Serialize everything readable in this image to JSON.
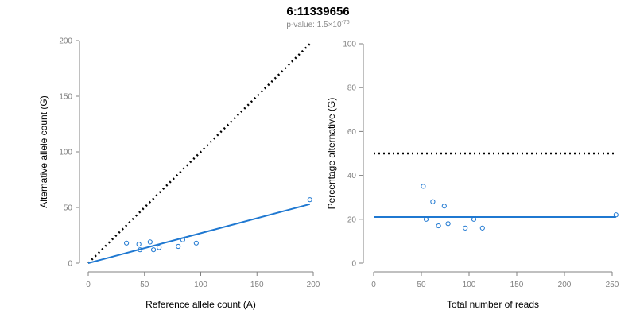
{
  "figure": {
    "title": "6:11339656",
    "subtitle_prefix": "p-value: 1.5×10",
    "subtitle_exponent": "-76"
  },
  "colors": {
    "series": "#1f78d1",
    "reference": "#000000",
    "axis": "#808080"
  },
  "chart_data": [
    {
      "type": "scatter",
      "xlabel": "Reference allele count (A)",
      "ylabel": "Alternative allele count (G)",
      "xlim": [
        0,
        200
      ],
      "ylim": [
        0,
        200
      ],
      "xticks": [
        0,
        50,
        100,
        150,
        200
      ],
      "yticks": [
        0,
        50,
        100,
        150,
        200
      ],
      "points": [
        {
          "x": 34,
          "y": 18
        },
        {
          "x": 45,
          "y": 17
        },
        {
          "x": 46,
          "y": 12
        },
        {
          "x": 55,
          "y": 19
        },
        {
          "x": 58,
          "y": 12
        },
        {
          "x": 63,
          "y": 14
        },
        {
          "x": 80,
          "y": 15
        },
        {
          "x": 84,
          "y": 21
        },
        {
          "x": 96,
          "y": 18
        },
        {
          "x": 197,
          "y": 57
        }
      ],
      "fit_line": {
        "x": [
          0,
          197
        ],
        "y": [
          0,
          53
        ]
      },
      "reference_line": {
        "x": [
          0,
          197
        ],
        "y": [
          0,
          197
        ],
        "style": "dotted"
      }
    },
    {
      "type": "scatter",
      "xlabel": "Total number of reads",
      "ylabel": "Percentage alternative (G)",
      "xlim": [
        0,
        250
      ],
      "ylim": [
        0,
        100
      ],
      "xticks": [
        0,
        50,
        100,
        150,
        200,
        250
      ],
      "yticks": [
        0,
        20,
        40,
        60,
        80,
        100
      ],
      "points": [
        {
          "x": 52,
          "y": 35
        },
        {
          "x": 55,
          "y": 20
        },
        {
          "x": 62,
          "y": 28
        },
        {
          "x": 68,
          "y": 17
        },
        {
          "x": 74,
          "y": 26
        },
        {
          "x": 78,
          "y": 18
        },
        {
          "x": 96,
          "y": 16
        },
        {
          "x": 105,
          "y": 20
        },
        {
          "x": 114,
          "y": 16
        },
        {
          "x": 254,
          "y": 22
        }
      ],
      "fit_line": {
        "x": [
          0,
          254
        ],
        "y": [
          21,
          21
        ]
      },
      "reference_line": {
        "x": [
          0,
          254
        ],
        "y": [
          50,
          50
        ],
        "style": "dotted"
      }
    }
  ]
}
